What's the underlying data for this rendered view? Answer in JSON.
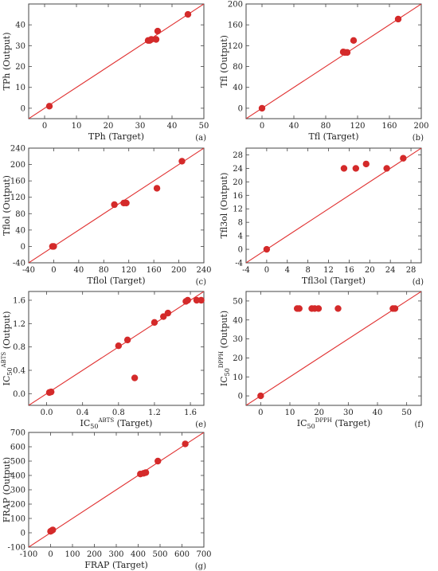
{
  "chart_data": [
    {
      "type": "scatter",
      "panel": "(a)",
      "xlabel": "TPh (Target)",
      "xlabel_main": "TPh (Target)",
      "xlabel_sup": "",
      "ylabel": "TPh (Output)",
      "ylabel_main": "TPh (Output)",
      "ylabel_sup": "",
      "xlim": [
        -5,
        50
      ],
      "ylim": [
        -5,
        50
      ],
      "xticks": [
        0,
        10,
        20,
        30,
        40,
        50
      ],
      "yticks": [
        0,
        10,
        20,
        30,
        40
      ],
      "fit_line": [
        [
          -5,
          -5
        ],
        [
          50,
          50
        ]
      ],
      "points": [
        [
          1.5,
          1
        ],
        [
          32.5,
          32.5
        ],
        [
          33,
          32.5
        ],
        [
          33.5,
          33
        ],
        [
          35,
          33
        ],
        [
          35.5,
          37
        ],
        [
          45,
          45
        ]
      ]
    },
    {
      "type": "scatter",
      "panel": "(b)",
      "xlabel": "Tfl (Target)",
      "xlabel_main": "Tfl (Target)",
      "xlabel_sup": "",
      "ylabel": "Tfl (Output)",
      "ylabel_main": "Tfl (Output)",
      "ylabel_sup": "",
      "xlim": [
        -20,
        200
      ],
      "ylim": [
        -20,
        200
      ],
      "xticks": [
        0,
        40,
        80,
        120,
        160,
        200
      ],
      "yticks": [
        0,
        40,
        80,
        120,
        160,
        200
      ],
      "fit_line": [
        [
          -20,
          -20
        ],
        [
          200,
          200
        ]
      ],
      "points": [
        [
          0,
          0
        ],
        [
          102,
          108
        ],
        [
          104,
          107
        ],
        [
          107,
          107
        ],
        [
          115,
          130
        ],
        [
          171,
          171
        ]
      ]
    },
    {
      "type": "scatter",
      "panel": "(c)",
      "xlabel": "Tflol (Target)",
      "xlabel_main": "Tflol (Target)",
      "xlabel_sup": "",
      "ylabel": "Tflol (Output)",
      "ylabel_main": "Tflol (Output)",
      "ylabel_sup": "",
      "xlim": [
        -40,
        240
      ],
      "ylim": [
        -40,
        240
      ],
      "xticks": [
        -40,
        0,
        40,
        80,
        120,
        160,
        200,
        240
      ],
      "yticks": [
        -40,
        0,
        40,
        80,
        120,
        160,
        200,
        240
      ],
      "fit_line": [
        [
          -40,
          -40
        ],
        [
          240,
          240
        ]
      ],
      "points": [
        [
          -2,
          0
        ],
        [
          0,
          0
        ],
        [
          97,
          102
        ],
        [
          112,
          106
        ],
        [
          116,
          106
        ],
        [
          165,
          142
        ],
        [
          205,
          208
        ]
      ]
    },
    {
      "type": "scatter",
      "panel": "(d)",
      "xlabel": "Tfl3ol (Target)",
      "xlabel_main": "Tfl3ol (Target)",
      "xlabel_sup": "",
      "ylabel": "Tfl3ol (Output)",
      "ylabel_main": "Tfl3ol (Output)",
      "ylabel_sup": "",
      "xlim": [
        -4,
        30
      ],
      "ylim": [
        -4,
        30
      ],
      "xticks": [
        -4,
        0,
        4,
        8,
        12,
        16,
        20,
        24,
        28
      ],
      "yticks": [
        -4,
        0,
        4,
        8,
        12,
        16,
        20,
        24,
        28
      ],
      "fit_line": [
        [
          -4,
          -4
        ],
        [
          30,
          30
        ]
      ],
      "points": [
        [
          0,
          0
        ],
        [
          15,
          24
        ],
        [
          17.3,
          24
        ],
        [
          19.3,
          25.3
        ],
        [
          23.3,
          24
        ],
        [
          26.5,
          27
        ]
      ]
    },
    {
      "type": "scatter",
      "panel": "(e)",
      "xlabel": "IC50ABTS (Target)",
      "xlabel_main": "IC",
      "xlabel_sub": "50",
      "xlabel_sup": "ABTS",
      "xlabel_tail": " (Target)",
      "ylabel": "IC50ABTS (Output)",
      "ylabel_main": "IC",
      "ylabel_sub": "50",
      "ylabel_sup": "ABTS",
      "ylabel_tail": " (Output)",
      "xlim": [
        -0.2,
        1.75
      ],
      "ylim": [
        -0.2,
        1.75
      ],
      "xticks": [
        0.0,
        0.4,
        0.8,
        1.2,
        1.6
      ],
      "yticks": [
        0.0,
        0.4,
        0.8,
        1.2,
        1.6
      ],
      "tick_decimals": 1,
      "fit_line": [
        [
          -0.2,
          -0.2
        ],
        [
          1.75,
          1.75
        ]
      ],
      "points": [
        [
          0.03,
          0.02
        ],
        [
          0.05,
          0.03
        ],
        [
          0.8,
          0.82
        ],
        [
          0.9,
          0.92
        ],
        [
          0.98,
          0.27
        ],
        [
          1.2,
          1.22
        ],
        [
          1.3,
          1.32
        ],
        [
          1.35,
          1.38
        ],
        [
          1.55,
          1.58
        ],
        [
          1.57,
          1.6
        ],
        [
          1.67,
          1.6
        ],
        [
          1.72,
          1.6
        ]
      ]
    },
    {
      "type": "scatter",
      "panel": "(f)",
      "xlabel": "IC50DPPH (Target)",
      "xlabel_main": "IC",
      "xlabel_sub": "50",
      "xlabel_sup": "DPPH",
      "xlabel_tail": " (Target)",
      "ylabel": "IC50DPPH (Output)",
      "ylabel_main": "IC",
      "ylabel_sub": "50",
      "ylabel_sup": "DPPH",
      "ylabel_tail": " (Output)",
      "xlim": [
        -5,
        55
      ],
      "ylim": [
        -5,
        55
      ],
      "xticks": [
        0,
        10,
        20,
        30,
        40,
        50
      ],
      "yticks": [
        0,
        10,
        20,
        30,
        40,
        50
      ],
      "fit_line": [
        [
          -5,
          -5
        ],
        [
          55,
          55
        ]
      ],
      "points": [
        [
          0,
          0
        ],
        [
          12.5,
          46
        ],
        [
          13.2,
          46
        ],
        [
          17.5,
          46
        ],
        [
          18.5,
          46
        ],
        [
          19.8,
          46
        ],
        [
          26.5,
          46
        ],
        [
          45.3,
          46
        ],
        [
          46,
          46
        ]
      ]
    },
    {
      "type": "scatter",
      "panel": "(g)",
      "xlabel": "FRAP (Target)",
      "xlabel_main": "FRAP (Target)",
      "xlabel_sup": "",
      "ylabel": "FRAP (Output)",
      "ylabel_main": "FRAP (Output)",
      "ylabel_sup": "",
      "xlim": [
        -100,
        700
      ],
      "ylim": [
        -100,
        700
      ],
      "xticks": [
        -100,
        0,
        100,
        200,
        300,
        400,
        500,
        600,
        700
      ],
      "yticks": [
        -100,
        0,
        100,
        200,
        300,
        400,
        500,
        600,
        700
      ],
      "fit_line": [
        [
          -100,
          -100
        ],
        [
          700,
          700
        ]
      ],
      "points": [
        [
          0,
          10
        ],
        [
          5,
          15
        ],
        [
          10,
          20
        ],
        [
          410,
          410
        ],
        [
          425,
          415
        ],
        [
          435,
          420
        ],
        [
          490,
          500
        ],
        [
          615,
          620
        ]
      ]
    }
  ],
  "colors": {
    "marker": "#d42a2a",
    "fit_line": "#e03030",
    "axis": "#444444"
  }
}
